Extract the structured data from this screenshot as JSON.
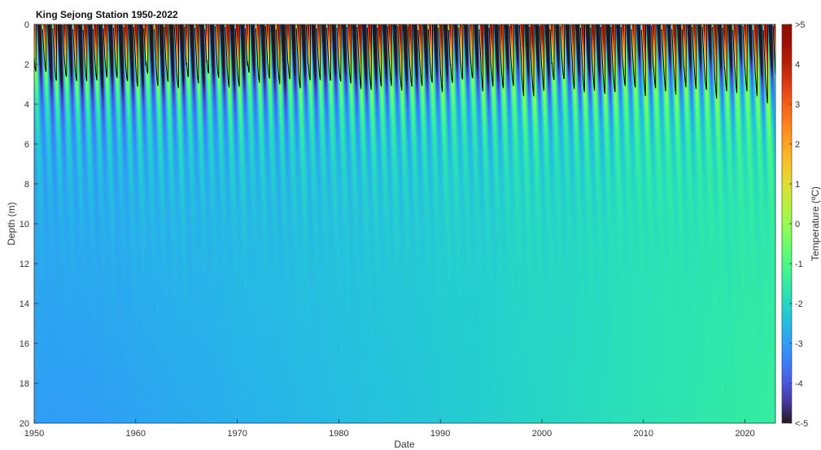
{
  "chart_data": {
    "type": "heatmap",
    "title": "King Sejong Station 1950-2022",
    "xlabel": "Date",
    "ylabel": "Depth (m)",
    "colorbar_label": "Temperature (ºC)",
    "xlim": [
      1950,
      2023
    ],
    "ylim": [
      0,
      20
    ],
    "y_reversed": true,
    "x_ticks": [
      1950,
      1960,
      1970,
      1980,
      1990,
      2000,
      2010,
      2020
    ],
    "y_ticks": [
      0,
      2,
      4,
      6,
      8,
      10,
      12,
      14,
      16,
      18,
      20
    ],
    "color_range": [
      -5,
      5
    ],
    "colorbar_ticks": [
      {
        "value": 5,
        "label": ">5"
      },
      {
        "value": 4,
        "label": "4"
      },
      {
        "value": 3,
        "label": "3"
      },
      {
        "value": 2,
        "label": "2"
      },
      {
        "value": 1,
        "label": "1"
      },
      {
        "value": 0,
        "label": "0"
      },
      {
        "value": -1,
        "label": "-1"
      },
      {
        "value": -2,
        "label": "-2"
      },
      {
        "value": -3,
        "label": "-3"
      },
      {
        "value": -4,
        "label": "-4"
      },
      {
        "value": -5,
        "label": "<-5"
      }
    ],
    "colormap": "turbo",
    "contour_level": 0,
    "thaw_depth_summary": [
      {
        "period": "1950-1980",
        "typical_max_thaw_depth": 2.0
      },
      {
        "period": "1980-2000",
        "typical_max_thaw_depth": 2.7
      },
      {
        "period": "2000-2022",
        "typical_max_thaw_depth": 3.2
      }
    ],
    "deep_temperature_summary": [
      {
        "period": "1950-1960",
        "temperature_at_20m": -3.0
      },
      {
        "period": "1970-1980",
        "temperature_at_20m": -2.7
      },
      {
        "period": "1990-2000",
        "temperature_at_20m": -2.2
      },
      {
        "period": "2010-2022",
        "temperature_at_20m": -1.6
      }
    ]
  }
}
